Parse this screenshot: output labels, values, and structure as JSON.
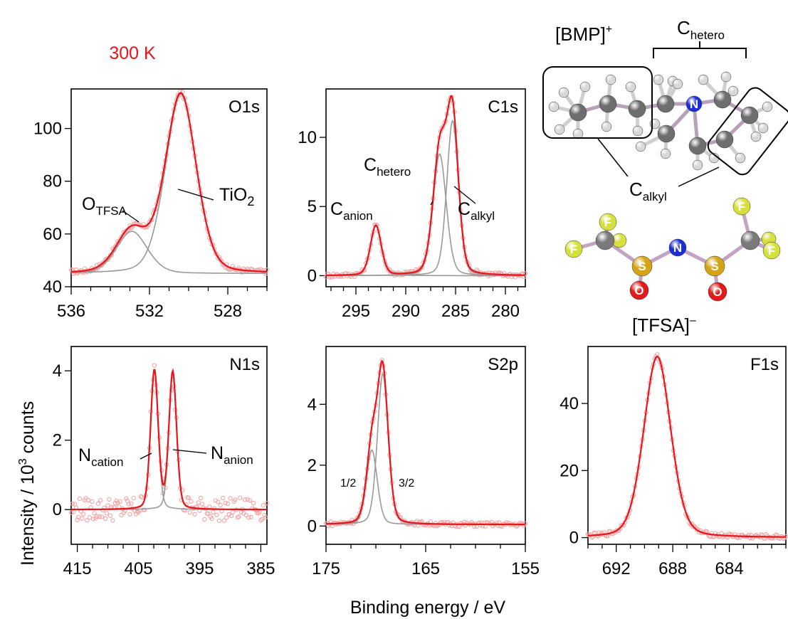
{
  "figure": {
    "temperature_label": "300 K",
    "y_axis_label": "Intensity / 10",
    "y_axis_label_exp": "3",
    "y_axis_label_suffix": " counts",
    "x_axis_label": "Binding energy / eV",
    "colors": {
      "fit": "#e8141b",
      "component": "#999999",
      "data": "#f4a3a3",
      "accent": "#e8141b"
    }
  },
  "molecules": {
    "cation": {
      "label": "[BMP]",
      "charge": "+",
      "regions": {
        "hetero": "C",
        "hetero_sub": "hetero",
        "alkyl": "C",
        "alkyl_sub": "alkyl"
      }
    },
    "anion": {
      "label": "[TFSA]",
      "charge": "–",
      "atoms": [
        "F",
        "F",
        "F",
        "F",
        "F",
        "F",
        "S",
        "S",
        "O",
        "O",
        "N"
      ]
    },
    "cation_atom_label": "N"
  },
  "chart_data": [
    {
      "type": "line",
      "title": "O1s",
      "xlim": [
        536,
        526
      ],
      "ylim": [
        40,
        115
      ],
      "x_reversed": true,
      "xticks": [
        536,
        532,
        528
      ],
      "yticks": [
        40,
        60,
        80,
        100
      ],
      "baseline": 45,
      "peaks": [
        {
          "name": "O",
          "name_sub": "TFSA",
          "center": 532.9,
          "height": 16,
          "fwhm": 1.9
        },
        {
          "name": "TiO",
          "name_sub": "2",
          "center": 530.4,
          "height": 68,
          "fwhm": 1.9
        }
      ]
    },
    {
      "type": "line",
      "title": "C1s",
      "xlim": [
        298,
        278
      ],
      "ylim": [
        -0.8,
        13.5
      ],
      "x_reversed": true,
      "xticks": [
        295,
        290,
        285,
        280
      ],
      "yticks": [
        0,
        5,
        10
      ],
      "baseline": 0,
      "peaks": [
        {
          "name": "C",
          "name_sub": "anion",
          "center": 293.0,
          "height": 3.6,
          "fwhm": 1.3
        },
        {
          "name": "C",
          "name_sub": "hetero",
          "center": 286.6,
          "height": 8.8,
          "fwhm": 1.6
        },
        {
          "name": "C",
          "name_sub": "alkyl",
          "center": 285.3,
          "height": 11.2,
          "fwhm": 1.4
        }
      ]
    },
    {
      "type": "line",
      "title": "N1s",
      "xlim": [
        416,
        384
      ],
      "ylim": [
        -1.0,
        4.7
      ],
      "x_reversed": true,
      "xticks": [
        415,
        405,
        395,
        385
      ],
      "yticks": [
        0,
        2,
        4
      ],
      "baseline": 0,
      "peaks": [
        {
          "name": "N",
          "name_sub": "cation",
          "center": 402.4,
          "height": 4.0,
          "fwhm": 1.5
        },
        {
          "name": "N",
          "name_sub": "anion",
          "center": 399.4,
          "height": 3.95,
          "fwhm": 1.5
        }
      ]
    },
    {
      "type": "line",
      "title": "S2p",
      "xlim": [
        175,
        155
      ],
      "ylim": [
        -0.6,
        5.9
      ],
      "x_reversed": true,
      "xticks": [
        175,
        165,
        155
      ],
      "yticks": [
        0,
        2,
        4
      ],
      "baseline": 0.05,
      "peaks": [
        {
          "name": "1/2",
          "name_sub": "",
          "center": 170.4,
          "height": 2.45,
          "fwhm": 1.3
        },
        {
          "name": "3/2",
          "name_sub": "",
          "center": 169.3,
          "height": 4.95,
          "fwhm": 1.3
        }
      ]
    },
    {
      "type": "line",
      "title": "F1s",
      "xlim": [
        694,
        680
      ],
      "ylim": [
        -2,
        57
      ],
      "x_reversed": true,
      "xticks": [
        692,
        688,
        684
      ],
      "yticks": [
        0,
        20,
        40
      ],
      "baseline": 0,
      "peaks": [
        {
          "name": "",
          "name_sub": "",
          "center": 689.1,
          "height": 54,
          "fwhm": 2.3
        }
      ]
    }
  ]
}
